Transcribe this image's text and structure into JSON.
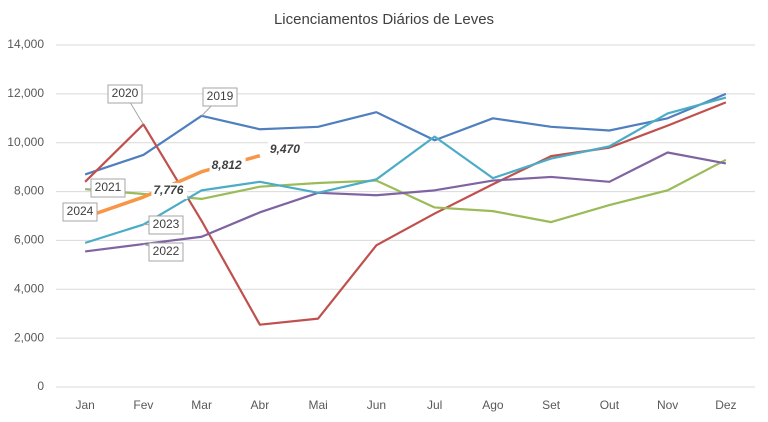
{
  "chart_data": {
    "type": "line",
    "title": "Licenciamentos Diários de Leves",
    "categories": [
      "Jan",
      "Fev",
      "Mar",
      "Abr",
      "Mai",
      "Jun",
      "Jul",
      "Ago",
      "Set",
      "Out",
      "Nov",
      "Dez"
    ],
    "ylim": [
      0,
      14000
    ],
    "yticks": [
      {
        "value": 0,
        "label": "0"
      },
      {
        "value": 2000,
        "label": "2,000"
      },
      {
        "value": 4000,
        "label": "4,000"
      },
      {
        "value": 6000,
        "label": "6,000"
      },
      {
        "value": 8000,
        "label": "8,000"
      },
      {
        "value": 10000,
        "label": "10,000"
      },
      {
        "value": 12000,
        "label": "12,000"
      },
      {
        "value": 14000,
        "label": "14,000"
      }
    ],
    "grid": true,
    "series": [
      {
        "name": "2019",
        "color": "#4f7fbf",
        "values": [
          8700,
          9500,
          11100,
          10550,
          10650,
          11250,
          10100,
          11000,
          10650,
          10500,
          11000,
          12000
        ]
      },
      {
        "name": "2020",
        "color": "#c0504d",
        "values": [
          8400,
          10750,
          6800,
          2550,
          2800,
          5800,
          7100,
          8300,
          9450,
          9800,
          10700,
          11650
        ]
      },
      {
        "name": "2021",
        "color": "#9bbb59",
        "values": [
          8100,
          7900,
          7700,
          8200,
          8350,
          8450,
          7350,
          7200,
          6750,
          7450,
          8050,
          9300
        ]
      },
      {
        "name": "2022",
        "color": "#8064a2",
        "values": [
          5550,
          5850,
          6150,
          7150,
          7950,
          7850,
          8050,
          8450,
          8600,
          8400,
          9600,
          9150
        ]
      },
      {
        "name": "2023",
        "color": "#4bacc6",
        "values": [
          5900,
          6650,
          8050,
          8400,
          7950,
          8500,
          10250,
          8550,
          9350,
          9850,
          11200,
          11850
        ]
      },
      {
        "name": "2024",
        "color": "#f79646",
        "values": [
          6950,
          7776,
          8812,
          9470,
          null,
          null,
          null,
          null,
          null,
          null,
          null,
          null
        ],
        "value_labels": [
          null,
          "7,776",
          "8,812",
          "9,470",
          null,
          null,
          null,
          null,
          null,
          null,
          null,
          null
        ]
      }
    ]
  }
}
